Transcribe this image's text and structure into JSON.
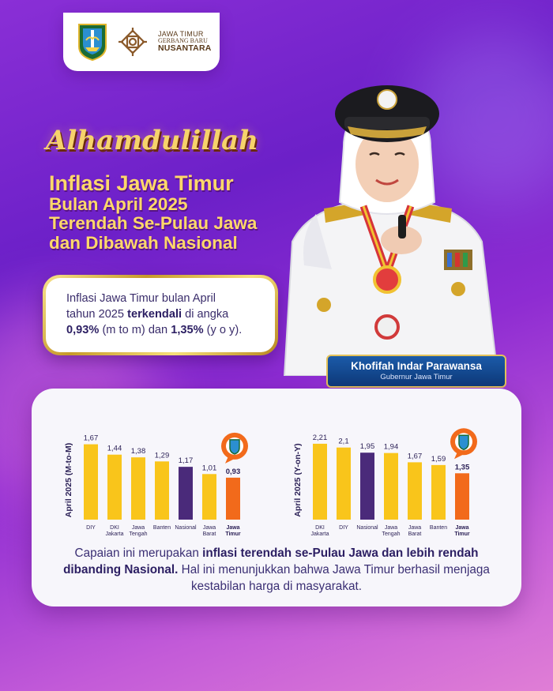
{
  "logo": {
    "line1": "JAWA TIMUR",
    "line2": "GERBANG BARU",
    "line3": "NUSANTARA"
  },
  "headline": {
    "script_title": "Alhamdulillah",
    "line1": "Inflasi Jawa Timur",
    "line2": "Bulan April 2025",
    "line3": "Terendah Se-Pulau Jawa",
    "line4": "dan Dibawah Nasional"
  },
  "callout": {
    "t1": "Inflasi Jawa Timur bulan April",
    "t2": "tahun 2025 ",
    "t2_bold": "terkendali",
    "t2_end": " di angka",
    "t3_v1": "0,93%",
    "t3_mid": " (m to m) dan ",
    "t3_v2": "1,35%",
    "t3_end": " (y o y)."
  },
  "governor": {
    "name": "Khofifah Indar Parawansa",
    "title": "Gubernur Jawa Timur"
  },
  "summary": {
    "p1": "Capaian ini merupakan ",
    "p1_bold": "inflasi terendah se-Pulau Jawa dan lebih rendah dibanding Nasional.",
    "p2": " Hal ini menunjukkan bahwa Jawa Timur berhasil menjaga kestabilan harga di masyarakat."
  },
  "colors": {
    "gold": "#f9c51b",
    "navy": "#4a2a7a",
    "orange": "#f26a1b"
  },
  "chart_data": [
    {
      "type": "bar",
      "ylabel": "April 2025 (M-to-M)",
      "categories": [
        "DIY",
        "DKI Jakarta",
        "Jawa Tengah",
        "Banten",
        "Nasional",
        "Jawa Barat",
        "Jawa Timur"
      ],
      "values": [
        1.67,
        1.44,
        1.38,
        1.29,
        1.17,
        1.01,
        0.93
      ],
      "value_labels": [
        "1,67",
        "1,44",
        "1,38",
        "1,29",
        "1,17",
        "1,01",
        "0,93"
      ],
      "highlight": "Jawa Timur",
      "ylim": [
        0,
        1.75
      ]
    },
    {
      "type": "bar",
      "ylabel": "April 2025 (Y-on-Y)",
      "categories": [
        "DKI Jakarta",
        "DIY",
        "Nasional",
        "Jawa Tengah",
        "Jawa Barat",
        "Banten",
        "Jawa Timur"
      ],
      "values": [
        2.21,
        2.1,
        1.95,
        1.94,
        1.67,
        1.59,
        1.35
      ],
      "value_labels": [
        "2,21",
        "2,1",
        "1,95",
        "1,94",
        "1,67",
        "1,59",
        "1,35"
      ],
      "highlight": "Jawa Timur",
      "ylim": [
        0,
        2.3
      ]
    }
  ]
}
